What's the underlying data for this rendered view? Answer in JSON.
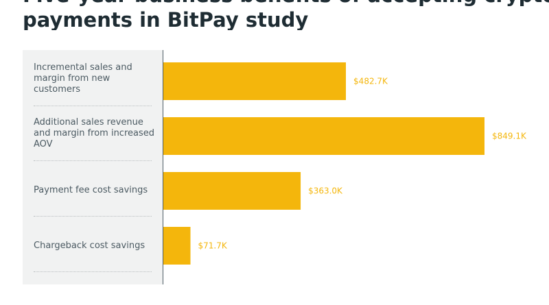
{
  "title": {
    "line1": "Five-year business benefits of accepting crypto payments",
    "line2": "payments in BitPay study"
  },
  "chart_data": {
    "type": "bar",
    "orientation": "horizontal",
    "categories": [
      "Incremental sales and margin from new customers",
      "Additional sales revenue and margin from increased AOV",
      "Payment fee cost savings",
      "Chargeback cost savings"
    ],
    "values": [
      482.7,
      849.1,
      363.0,
      71.7
    ],
    "value_labels": [
      "$482.7K",
      "$849.1K",
      "$363.0K",
      "$71.7K"
    ],
    "unit": "$K",
    "xlim": [
      0,
      849.1
    ],
    "grid": false,
    "legend": "none",
    "bar_color": "#f4b60c",
    "label_color": "#f4b60c"
  },
  "rows": [
    {
      "label_lines": [
        "Incremental sales and",
        "margin from new",
        "customers"
      ]
    },
    {
      "label_lines": [
        "Additional sales revenue",
        "and margin from increased",
        "AOV"
      ]
    },
    {
      "label_lines": [
        "Payment fee cost savings"
      ]
    },
    {
      "label_lines": [
        "Chargeback cost savings"
      ]
    }
  ]
}
